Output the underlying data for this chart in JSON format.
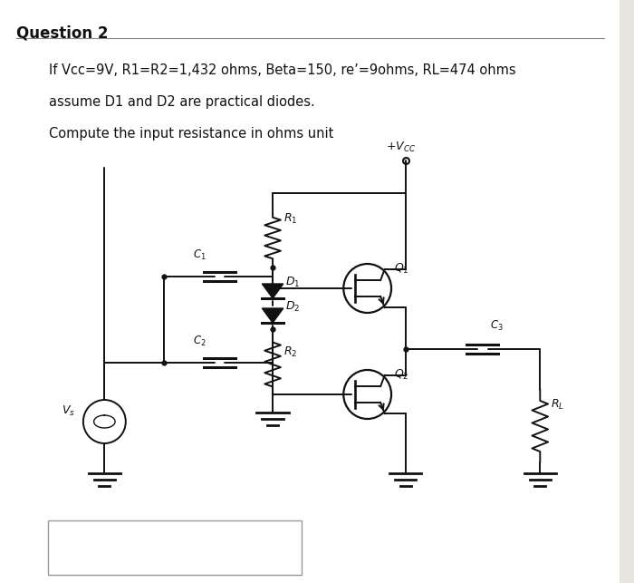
{
  "title": "Question 2",
  "line1": "If Vcc=9V, R1=R2=1,432 ohms, Beta=150, re’=9ohms, RL=474 ohms",
  "line2": "assume D1 and D2 are practical diodes.",
  "line3": "Compute the input resistance in ohms unit",
  "bg_color": "#e8e4de",
  "text_color": "#111111",
  "circuit_color": "#111111",
  "title_fontsize": 12,
  "body_fontsize": 10.5
}
